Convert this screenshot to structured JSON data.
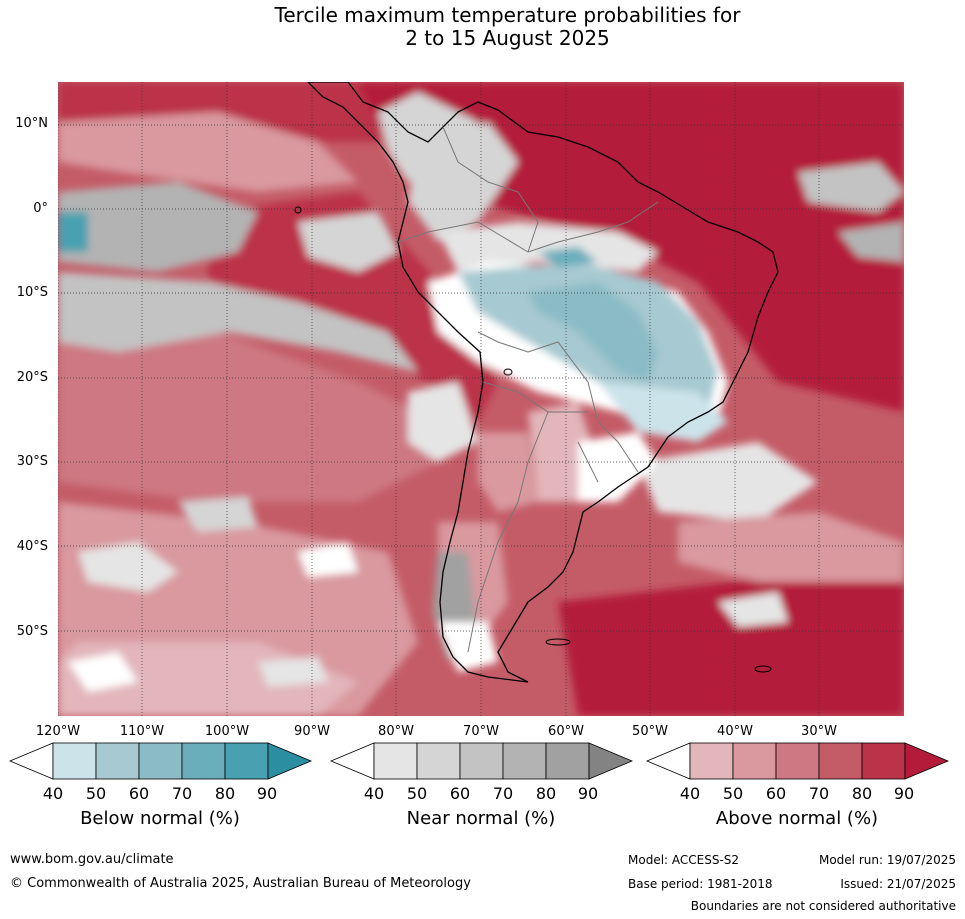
{
  "title": {
    "line1": "Tercile maximum temperature probabilities for",
    "line2": "2 to 15 August 2025"
  },
  "map": {
    "region": "South America",
    "lat_labels": [
      "10°N",
      "0°",
      "10°S",
      "20°S",
      "30°S",
      "40°S",
      "50°S"
    ],
    "lon_labels": [
      "120°W",
      "110°W",
      "100°W",
      "90°W",
      "80°W",
      "70°W",
      "60°W",
      "50°W",
      "40°W",
      "30°W"
    ]
  },
  "colorbars": [
    {
      "label": "Below normal (%)",
      "ticks": [
        "40",
        "50",
        "60",
        "70",
        "80",
        "90"
      ],
      "colors": [
        "#ffffff",
        "#cce3ea",
        "#a7c9d1",
        "#8bbcc6",
        "#6aaebc",
        "#48a0b0",
        "#2b8ea1"
      ]
    },
    {
      "label": "Near normal (%)",
      "ticks": [
        "40",
        "50",
        "60",
        "70",
        "80",
        "90"
      ],
      "colors": [
        "#ffffff",
        "#e5e5e5",
        "#d5d5d5",
        "#c3c3c3",
        "#b3b3b3",
        "#a1a1a1",
        "#838383"
      ]
    },
    {
      "label": "Above normal (%)",
      "ticks": [
        "40",
        "50",
        "60",
        "70",
        "80",
        "90"
      ],
      "colors": [
        "#ffffff",
        "#e2b6bb",
        "#d9999f",
        "#cd7882",
        "#c45c67",
        "#bb3349",
        "#b41b3b"
      ]
    }
  ],
  "footer": {
    "website": "www.bom.gov.au/climate",
    "copyright": "© Commonwealth of Australia 2025, Australian Bureau of Meteorology",
    "model": "Model: ACCESS-S2",
    "model_run": "Model run: 19/07/2025",
    "base_period": "Base period: 1981-2018",
    "issued": "Issued: 21/07/2025",
    "disclaimer": "Boundaries are not considered authoritative"
  }
}
